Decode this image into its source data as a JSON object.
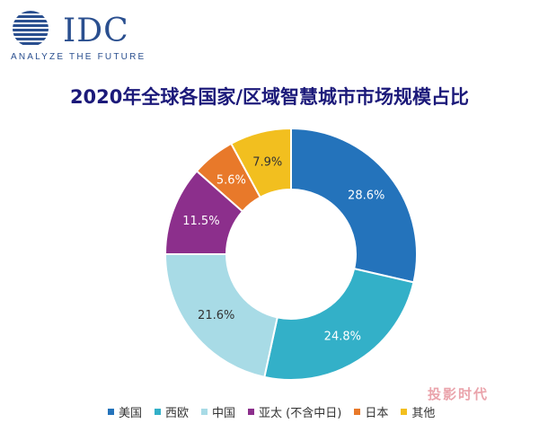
{
  "logo": {
    "text": "IDC",
    "tagline": "ANALYZE THE FUTURE",
    "color": "#2a4f8f"
  },
  "chart_data": {
    "type": "pie",
    "variant": "donut",
    "title": "2020年全球各国家/区域智慧城市市场规模占比",
    "categories": [
      "美国",
      "西欧",
      "中国",
      "亚太 (不含中日)",
      "日本",
      "其他"
    ],
    "values": [
      28.6,
      24.8,
      21.6,
      11.5,
      5.6,
      7.9
    ],
    "labels": [
      "28.6%",
      "24.8%",
      "21.6%",
      "11.5%",
      "5.6%",
      "7.9%"
    ],
    "colors": [
      "#2473bb",
      "#33b0c8",
      "#a8dbe6",
      "#8c2f8c",
      "#e8792a",
      "#f2bf1f"
    ],
    "label_colors": [
      "#ffffff",
      "#ffffff",
      "#333333",
      "#ffffff",
      "#ffffff",
      "#333333"
    ],
    "legend_position": "bottom"
  },
  "watermark": {
    "text": "投影时代"
  }
}
